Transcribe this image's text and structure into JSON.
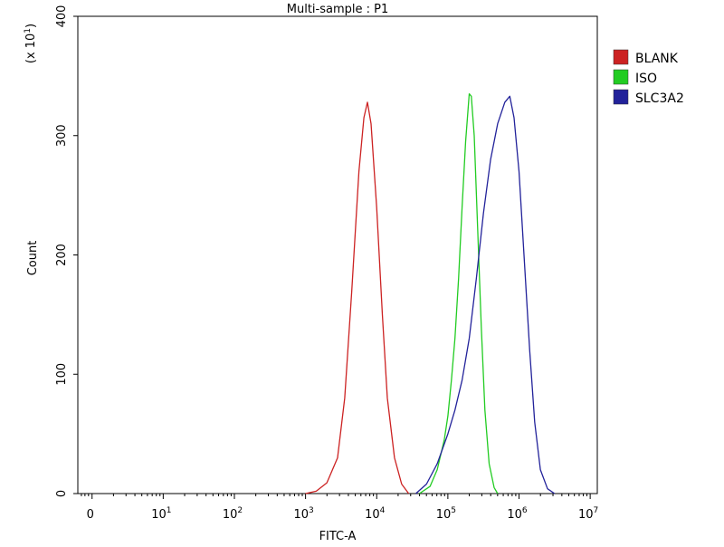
{
  "chart_data": {
    "type": "line",
    "title": "Multi-sample : P1",
    "xlabel": "FITC-A",
    "ylabel": "Count",
    "y_multiplier": "(x 10",
    "y_multiplier_exp": "1",
    "x_scale": "log",
    "xlim": [
      -0.2,
      7.1
    ],
    "ylim": [
      0,
      40
    ],
    "yticks": [
      {
        "value": 0,
        "label": "0"
      },
      {
        "value": 10,
        "label": "100"
      },
      {
        "value": 20,
        "label": "200"
      },
      {
        "value": 30,
        "label": "300"
      },
      {
        "value": 40,
        "label": "400"
      }
    ],
    "xticks": [
      {
        "value": 0,
        "base": "0",
        "exp": ""
      },
      {
        "value": 1,
        "base": "10",
        "exp": "1"
      },
      {
        "value": 2,
        "base": "10",
        "exp": "2"
      },
      {
        "value": 3,
        "base": "10",
        "exp": "3"
      },
      {
        "value": 4,
        "base": "10",
        "exp": "4"
      },
      {
        "value": 5,
        "base": "10",
        "exp": "5"
      },
      {
        "value": 6,
        "base": "10",
        "exp": "6"
      },
      {
        "value": 7,
        "base": "10",
        "exp": "7"
      }
    ],
    "legend_position": "top-right",
    "series": [
      {
        "name": "BLANK",
        "color": "#cc2222",
        "points": [
          [
            3.0,
            0
          ],
          [
            3.15,
            0.2
          ],
          [
            3.3,
            0.9
          ],
          [
            3.45,
            3.0
          ],
          [
            3.55,
            8.0
          ],
          [
            3.65,
            17.0
          ],
          [
            3.75,
            27.0
          ],
          [
            3.82,
            31.5
          ],
          [
            3.87,
            32.8
          ],
          [
            3.92,
            31.0
          ],
          [
            4.0,
            24.0
          ],
          [
            4.08,
            15.0
          ],
          [
            4.15,
            8.0
          ],
          [
            4.25,
            3.0
          ],
          [
            4.35,
            0.8
          ],
          [
            4.45,
            0
          ]
        ]
      },
      {
        "name": "ISO",
        "color": "#22cc22",
        "points": [
          [
            4.6,
            0
          ],
          [
            4.75,
            0.6
          ],
          [
            4.85,
            2.0
          ],
          [
            4.95,
            4.5
          ],
          [
            5.0,
            6.5
          ],
          [
            5.05,
            9.5
          ],
          [
            5.1,
            13.0
          ],
          [
            5.15,
            18.0
          ],
          [
            5.2,
            24.0
          ],
          [
            5.25,
            29.5
          ],
          [
            5.3,
            33.5
          ],
          [
            5.33,
            33.3
          ],
          [
            5.37,
            30.0
          ],
          [
            5.42,
            22.0
          ],
          [
            5.47,
            14.0
          ],
          [
            5.52,
            7.0
          ],
          [
            5.58,
            2.5
          ],
          [
            5.65,
            0.5
          ],
          [
            5.7,
            0
          ]
        ]
      },
      {
        "name": "SLC3A2",
        "color": "#22229a",
        "points": [
          [
            4.55,
            0
          ],
          [
            4.7,
            0.8
          ],
          [
            4.85,
            2.5
          ],
          [
            5.0,
            5.0
          ],
          [
            5.1,
            7.0
          ],
          [
            5.2,
            9.5
          ],
          [
            5.3,
            13.0
          ],
          [
            5.4,
            18.0
          ],
          [
            5.5,
            23.5
          ],
          [
            5.6,
            28.0
          ],
          [
            5.7,
            31.0
          ],
          [
            5.8,
            32.8
          ],
          [
            5.87,
            33.3
          ],
          [
            5.93,
            31.5
          ],
          [
            6.0,
            27.0
          ],
          [
            6.07,
            20.0
          ],
          [
            6.15,
            12.0
          ],
          [
            6.22,
            6.0
          ],
          [
            6.3,
            2.0
          ],
          [
            6.4,
            0.4
          ],
          [
            6.5,
            0
          ]
        ]
      }
    ]
  }
}
